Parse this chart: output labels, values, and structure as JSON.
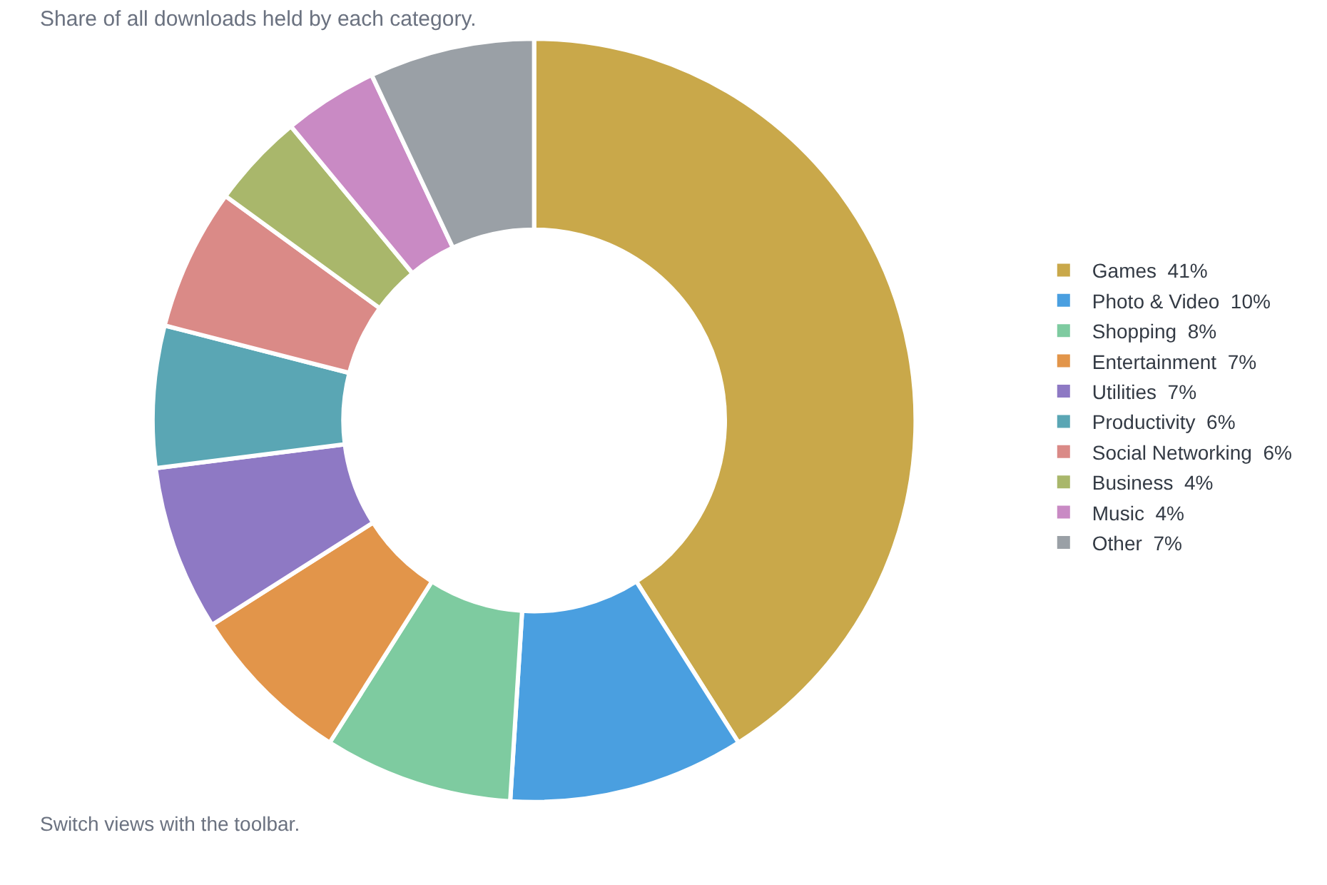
{
  "chart_data": {
    "type": "donut",
    "subtitle": "Share of all downloads held by each category.",
    "categories": [
      "Games",
      "Photo & Video",
      "Shopping",
      "Entertainment",
      "Utilities",
      "Productivity",
      "Social Networking",
      "Business",
      "Music",
      "Other"
    ],
    "values": [
      41,
      10,
      8,
      7,
      7,
      6,
      6,
      4,
      4,
      7
    ],
    "value_labels": [
      "41%",
      "10%",
      "8%",
      "7%",
      "7%",
      "6%",
      "6%",
      "4%",
      "4%",
      "7%"
    ],
    "colors": [
      "#c9a84a",
      "#4a9fe0",
      "#7ecba0",
      "#e2954a",
      "#8e79c4",
      "#5aa6b4",
      "#da8a87",
      "#a9b76b",
      "#c98ac4",
      "#9aa0a6"
    ],
    "legend": "right",
    "annotations": [
      "Switch views with the toolbar."
    ]
  }
}
